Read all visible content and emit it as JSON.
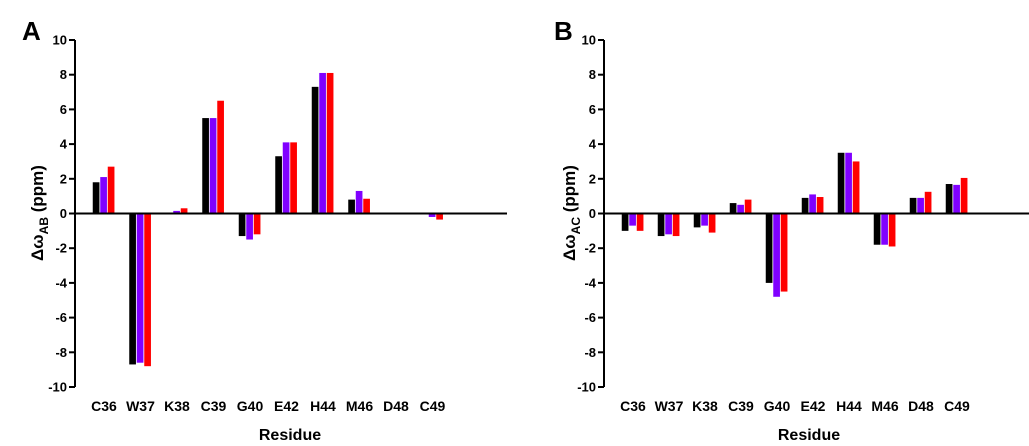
{
  "chart_data": [
    {
      "type": "bar",
      "panel_label": "A",
      "categories": [
        "C36",
        "W37",
        "K38",
        "C39",
        "G40",
        "E42",
        "H44",
        "M46",
        "D48",
        "C49"
      ],
      "series": [
        {
          "color": "#000000",
          "values": [
            1.8,
            -8.7,
            0,
            5.5,
            -1.3,
            3.3,
            7.3,
            0.8,
            0,
            0
          ]
        },
        {
          "color": "#8000ff",
          "values": [
            2.1,
            -8.6,
            0.15,
            5.5,
            -1.5,
            4.1,
            8.1,
            1.3,
            0,
            -0.2
          ]
        },
        {
          "color": "#ff0000",
          "values": [
            2.7,
            -8.8,
            0.3,
            6.5,
            -1.2,
            4.1,
            8.1,
            0.85,
            0,
            -0.35
          ]
        }
      ],
      "xlabel": "Residue",
      "ylabel": {
        "prefix": "Δω",
        "subscript": "AB",
        "suffix": " (ppm)"
      },
      "ylim": [
        -10,
        10
      ],
      "yticks": [
        "-10",
        "-8",
        "-6",
        "-4",
        "-2",
        "0",
        "2",
        "4",
        "6",
        "8",
        "10"
      ],
      "grid": false
    },
    {
      "type": "bar",
      "panel_label": "B",
      "categories": [
        "C36",
        "W37",
        "K38",
        "C39",
        "G40",
        "E42",
        "H44",
        "M46",
        "D48",
        "C49"
      ],
      "series": [
        {
          "color": "#000000",
          "values": [
            -1.0,
            -1.3,
            -0.8,
            0.6,
            -4.0,
            0.9,
            3.5,
            -1.8,
            0.9,
            1.7
          ]
        },
        {
          "color": "#8000ff",
          "values": [
            -0.7,
            -1.2,
            -0.7,
            0.5,
            -4.8,
            1.1,
            3.5,
            -1.8,
            0.9,
            1.65
          ]
        },
        {
          "color": "#ff0000",
          "values": [
            -1.0,
            -1.3,
            -1.1,
            0.8,
            -4.5,
            0.95,
            3.0,
            -1.9,
            1.25,
            2.05
          ]
        }
      ],
      "xlabel": "Residue",
      "ylabel": {
        "prefix": "Δω",
        "subscript": "AC",
        "suffix": " (ppm)"
      },
      "ylim": [
        -10,
        10
      ],
      "yticks": [
        "-10",
        "-8",
        "-6",
        "-4",
        "-2",
        "0",
        "2",
        "4",
        "6",
        "8",
        "10"
      ],
      "grid": false
    }
  ]
}
